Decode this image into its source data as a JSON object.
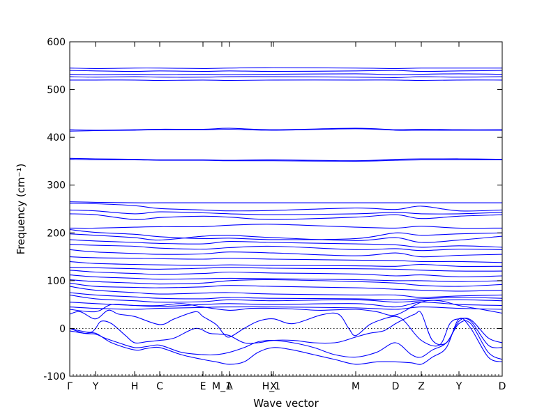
{
  "chart_data": {
    "type": "line",
    "xlabel": "Wave vector",
    "ylabel": "Frequency (cm⁻¹)",
    "ylim": [
      -100,
      600
    ],
    "yticks": [
      -100,
      0,
      100,
      200,
      300,
      400,
      500,
      600
    ],
    "xlim": [
      0,
      620
    ],
    "high_symmetry_points": [
      {
        "label": "Γ",
        "x": 0
      },
      {
        "label": "Y",
        "x": 37
      },
      {
        "label": "H",
        "x": 93
      },
      {
        "label": "C",
        "x": 129
      },
      {
        "label": "E",
        "x": 191
      },
      {
        "label": "M_1",
        "x": 218
      },
      {
        "label": "A",
        "x": 229
      },
      {
        "label": "H_1",
        "x": 289
      },
      {
        "label": "X",
        "x": 292
      },
      {
        "label": "M",
        "x": 410
      },
      {
        "label": "D",
        "x": 467
      },
      {
        "label": "Z",
        "x": 504
      },
      {
        "label": "Y",
        "x": 558
      },
      {
        "label": "D",
        "x": 620
      }
    ],
    "zero_line": true,
    "color": "#0000ff",
    "series": [
      {
        "x": [
          0,
          37,
          93,
          129,
          191,
          229,
          292,
          410,
          467,
          504,
          558,
          620
        ],
        "y": [
          545,
          544,
          545,
          545,
          544,
          545,
          546,
          545,
          544,
          545,
          545,
          545
        ]
      },
      {
        "x": [
          0,
          37,
          93,
          129,
          191,
          229,
          292,
          410,
          467,
          504,
          558,
          620
        ],
        "y": [
          540,
          539,
          538,
          539,
          538,
          539,
          538,
          539,
          540,
          538,
          539,
          540
        ]
      },
      {
        "x": [
          0,
          37,
          93,
          129,
          191,
          229,
          292,
          410,
          467,
          504,
          558,
          620
        ],
        "y": [
          532,
          531,
          532,
          531,
          532,
          531,
          532,
          533,
          531,
          532,
          533,
          532
        ]
      },
      {
        "x": [
          0,
          37,
          93,
          129,
          191,
          229,
          292,
          410,
          467,
          504,
          558,
          620
        ],
        "y": [
          527,
          526,
          527,
          526,
          526,
          527,
          527,
          526,
          525,
          527,
          526,
          527
        ]
      },
      {
        "x": [
          0,
          37,
          93,
          129,
          191,
          229,
          292,
          410,
          467,
          504,
          558,
          620
        ],
        "y": [
          520,
          520,
          520,
          519,
          520,
          519,
          520,
          520,
          520,
          519,
          520,
          520
        ]
      },
      {
        "x": [
          0,
          37,
          93,
          129,
          191,
          229,
          292,
          410,
          467,
          504,
          558,
          620
        ],
        "y": [
          416,
          415,
          416,
          417,
          417,
          419,
          416,
          419,
          416,
          417,
          416,
          416
        ]
      },
      {
        "x": [
          0,
          37,
          93,
          129,
          191,
          229,
          292,
          410,
          467,
          504,
          558,
          620
        ],
        "y": [
          413,
          414,
          415,
          416,
          416,
          417,
          415,
          418,
          415,
          415,
          415,
          415
        ]
      },
      {
        "x": [
          0,
          37,
          93,
          129,
          191,
          229,
          292,
          410,
          467,
          504,
          558,
          620
        ],
        "y": [
          356,
          355,
          354,
          353,
          353,
          352,
          353,
          351,
          354,
          355,
          355,
          354
        ]
      },
      {
        "x": [
          0,
          37,
          93,
          129,
          191,
          229,
          292,
          410,
          467,
          504,
          558,
          620
        ],
        "y": [
          354,
          353,
          353,
          352,
          352,
          351,
          351,
          350,
          352,
          353,
          353,
          353
        ]
      },
      {
        "x": [
          0,
          37,
          93,
          129,
          191,
          229,
          292,
          410,
          467,
          504,
          558,
          620
        ],
        "y": [
          265,
          264,
          263,
          263,
          263,
          263,
          263,
          263,
          263,
          263,
          263,
          263
        ]
      },
      {
        "x": [
          0,
          37,
          93,
          129,
          191,
          229,
          292,
          410,
          467,
          504,
          558,
          620
        ],
        "y": [
          262,
          261,
          257,
          251,
          248,
          246,
          247,
          252,
          249,
          256,
          246,
          248
        ]
      },
      {
        "x": [
          0,
          37,
          93,
          129,
          191,
          229,
          292,
          410,
          467,
          504,
          558,
          620
        ],
        "y": [
          248,
          246,
          240,
          244,
          242,
          240,
          238,
          240,
          243,
          240,
          240,
          243
        ]
      },
      {
        "x": [
          0,
          37,
          93,
          129,
          191,
          229,
          292,
          410,
          467,
          504,
          558,
          620
        ],
        "y": [
          240,
          238,
          228,
          232,
          235,
          233,
          228,
          233,
          238,
          230,
          235,
          238
        ]
      },
      {
        "x": [
          0,
          37,
          93,
          129,
          191,
          229,
          292,
          410,
          467,
          504,
          558,
          620
        ],
        "y": [
          210,
          210,
          212,
          213,
          213,
          216,
          218,
          212,
          210,
          214,
          210,
          210
        ]
      },
      {
        "x": [
          0,
          37,
          93,
          129,
          191,
          229,
          292,
          410,
          467,
          504,
          558,
          620
        ],
        "y": [
          207,
          201,
          197,
          192,
          188,
          189,
          186,
          188,
          200,
          195,
          198,
          200
        ]
      },
      {
        "x": [
          0,
          37,
          93,
          129,
          191,
          229,
          292,
          410,
          467,
          504,
          558,
          620
        ],
        "y": [
          198,
          195,
          190,
          185,
          193,
          195,
          190,
          184,
          190,
          180,
          185,
          193
        ]
      },
      {
        "x": [
          0,
          37,
          93,
          129,
          191,
          229,
          292,
          410,
          467,
          504,
          558,
          620
        ],
        "y": [
          186,
          183,
          180,
          178,
          177,
          182,
          180,
          177,
          175,
          170,
          173,
          170
        ]
      },
      {
        "x": [
          0,
          37,
          93,
          129,
          191,
          229,
          292,
          410,
          467,
          504,
          558,
          620
        ],
        "y": [
          176,
          174,
          172,
          168,
          166,
          169,
          172,
          165,
          167,
          163,
          166,
          165
        ]
      },
      {
        "x": [
          0,
          37,
          93,
          129,
          191,
          229,
          292,
          410,
          467,
          504,
          558,
          620
        ],
        "y": [
          165,
          160,
          157,
          155,
          156,
          160,
          158,
          152,
          158,
          150,
          153,
          155
        ]
      },
      {
        "x": [
          0,
          37,
          93,
          129,
          191,
          229,
          292,
          410,
          467,
          504,
          558,
          620
        ],
        "y": [
          150,
          148,
          147,
          146,
          145,
          147,
          145,
          143,
          142,
          140,
          140,
          138
        ]
      },
      {
        "x": [
          0,
          37,
          93,
          129,
          191,
          229,
          292,
          410,
          467,
          504,
          558,
          620
        ],
        "y": [
          140,
          136,
          134,
          133,
          132,
          133,
          132,
          131,
          130,
          134,
          130,
          130
        ]
      },
      {
        "x": [
          0,
          37,
          93,
          129,
          191,
          229,
          292,
          410,
          467,
          504,
          558,
          620
        ],
        "y": [
          128,
          127,
          125,
          124,
          126,
          128,
          126,
          125,
          124,
          122,
          120,
          120
        ]
      },
      {
        "x": [
          0,
          37,
          93,
          129,
          191,
          229,
          292,
          410,
          467,
          504,
          558,
          620
        ],
        "y": [
          122,
          118,
          115,
          113,
          115,
          118,
          116,
          114,
          110,
          112,
          108,
          110
        ]
      },
      {
        "x": [
          0,
          37,
          93,
          129,
          191,
          229,
          292,
          410,
          467,
          504,
          558,
          620
        ],
        "y": [
          112,
          108,
          105,
          103,
          104,
          105,
          104,
          102,
          100,
          100,
          98,
          100
        ]
      },
      {
        "x": [
          0,
          37,
          93,
          129,
          191,
          229,
          292,
          410,
          467,
          504,
          558,
          620
        ],
        "y": [
          102,
          98,
          95,
          93,
          95,
          100,
          102,
          98,
          95,
          90,
          88,
          92
        ]
      },
      {
        "x": [
          0,
          37,
          93,
          129,
          191,
          229,
          292,
          410,
          467,
          504,
          558,
          620
        ],
        "y": [
          95,
          88,
          86,
          85,
          87,
          90,
          88,
          85,
          82,
          80,
          78,
          80
        ]
      },
      {
        "x": [
          0,
          37,
          93,
          129,
          191,
          229,
          292,
          410,
          467,
          504,
          558,
          620
        ],
        "y": [
          88,
          80,
          75,
          72,
          74,
          75,
          72,
          70,
          70,
          65,
          68,
          70
        ]
      },
      {
        "x": [
          0,
          37,
          93,
          129,
          191,
          229,
          292,
          410,
          467,
          504,
          558,
          620
        ],
        "y": [
          75,
          70,
          66,
          63,
          62,
          65,
          63,
          62,
          60,
          62,
          65,
          63
        ]
      },
      {
        "x": [
          0,
          37,
          93,
          129,
          191,
          229,
          292,
          410,
          467,
          504,
          558,
          620
        ],
        "y": [
          70,
          62,
          58,
          55,
          56,
          60,
          58,
          60,
          55,
          58,
          60,
          58
        ]
      },
      {
        "x": [
          0,
          37,
          93,
          129,
          191,
          229,
          292,
          410,
          467,
          504,
          558,
          620
        ],
        "y": [
          55,
          52,
          48,
          46,
          50,
          52,
          50,
          52,
          45,
          55,
          50,
          48
        ]
      },
      {
        "x": [
          0,
          37,
          93,
          129,
          191,
          229,
          292,
          410,
          467,
          504,
          558,
          620
        ],
        "y": [
          45,
          42,
          40,
          42,
          44,
          45,
          45,
          43,
          40,
          45,
          42,
          40
        ]
      },
      {
        "x": [
          0,
          37,
          60,
          93,
          129,
          160,
          191,
          229,
          260,
          292,
          330,
          360,
          410,
          440,
          467,
          504,
          530,
          558,
          590,
          620
        ],
        "y": [
          40,
          35,
          50,
          48,
          48,
          52,
          45,
          38,
          42,
          42,
          40,
          38,
          40,
          35,
          28,
          55,
          58,
          48,
          40,
          32
        ]
      },
      {
        "x": [
          0,
          15,
          37,
          55,
          70,
          93,
          129,
          150,
          180,
          191,
          210,
          220,
          229,
          250,
          270,
          292,
          320,
          360,
          385,
          400,
          410,
          430,
          450,
          467,
          480,
          504,
          530,
          545,
          558,
          575,
          600,
          620
        ],
        "y": [
          30,
          35,
          20,
          38,
          30,
          25,
          8,
          20,
          35,
          25,
          8,
          -10,
          -18,
          0,
          15,
          20,
          10,
          28,
          30,
          0,
          -15,
          8,
          20,
          25,
          15,
          -25,
          -35,
          10,
          20,
          15,
          -35,
          -40
        ]
      },
      {
        "x": [
          0,
          15,
          30,
          37,
          45,
          60,
          80,
          93,
          110,
          129,
          150,
          180,
          200,
          215,
          229,
          250,
          270,
          292,
          320,
          350,
          380,
          395,
          410,
          430,
          450,
          467,
          480,
          495,
          504,
          520,
          540,
          558,
          575,
          600,
          620
        ],
        "y": [
          0,
          -5,
          -8,
          0,
          15,
          10,
          -15,
          -30,
          -28,
          -25,
          -20,
          0,
          -10,
          -12,
          -15,
          -30,
          -30,
          -25,
          -25,
          -30,
          -30,
          -25,
          -18,
          -10,
          -5,
          10,
          20,
          30,
          32,
          -25,
          -30,
          15,
          18,
          -20,
          -30
        ]
      },
      {
        "x": [
          0,
          20,
          37,
          50,
          70,
          93,
          110,
          129,
          160,
          191,
          210,
          229,
          250,
          270,
          292,
          320,
          350,
          380,
          410,
          440,
          467,
          490,
          504,
          520,
          540,
          558,
          575,
          600,
          620
        ],
        "y": [
          0,
          -10,
          -12,
          -20,
          -30,
          -40,
          -38,
          -35,
          -50,
          -55,
          -55,
          -50,
          -40,
          -28,
          -25,
          -30,
          -40,
          -55,
          -60,
          -50,
          -30,
          -55,
          -60,
          -45,
          -30,
          10,
          10,
          -50,
          -65
        ]
      },
      {
        "x": [
          0,
          20,
          37,
          60,
          93,
          110,
          129,
          160,
          191,
          210,
          229,
          250,
          270,
          292,
          320,
          350,
          380,
          410,
          440,
          467,
          490,
          504,
          520,
          540,
          558,
          575,
          600,
          620
        ],
        "y": [
          -5,
          -10,
          -10,
          -30,
          -45,
          -42,
          -40,
          -55,
          -65,
          -70,
          -75,
          -70,
          -50,
          -40,
          -45,
          -55,
          -65,
          -75,
          -70,
          -70,
          -72,
          -75,
          -60,
          -40,
          20,
          0,
          -60,
          -70
        ]
      }
    ]
  }
}
